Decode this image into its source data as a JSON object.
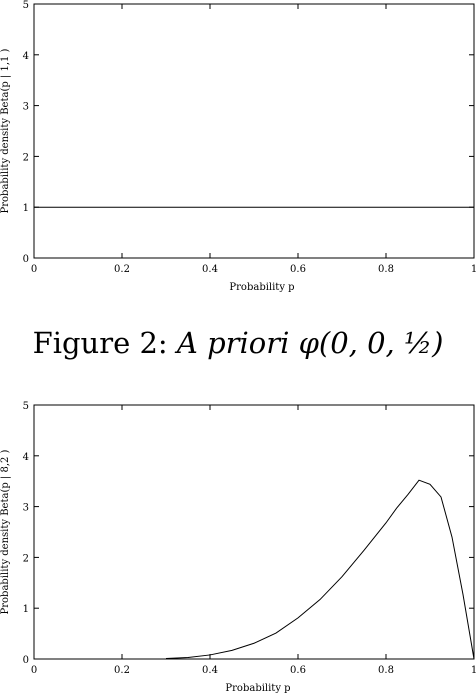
{
  "caption": {
    "prefix": "Figure 2: ",
    "italic": "A priori",
    "math": "φ(0, 0, ½)"
  },
  "chart_data": [
    {
      "type": "line",
      "xlabel": "Probability p",
      "ylabel": "Probability density  Beta(p | 1,1 )",
      "xlim": [
        0,
        1
      ],
      "ylim": [
        0,
        5
      ],
      "x_ticks": [
        "0",
        "0.2",
        "0.4",
        "0.6",
        "0.8",
        "1"
      ],
      "y_ticks": [
        "0",
        "1",
        "2",
        "3",
        "4",
        "5"
      ],
      "grid": false,
      "series": [
        {
          "x": [
            0,
            0.25,
            0.5,
            0.75,
            1
          ],
          "y": [
            1,
            1,
            1,
            1,
            1
          ]
        }
      ]
    },
    {
      "type": "line",
      "xlabel": "Probability  p",
      "ylabel": "Probability density  Beta(p | 8,2 )",
      "xlim": [
        0,
        1
      ],
      "ylim": [
        0,
        5
      ],
      "x_ticks": [
        "0",
        "0.2",
        "0.4",
        "0.6",
        "0.8",
        "1"
      ],
      "y_ticks": [
        "0",
        "1",
        "2",
        "3",
        "4",
        "5"
      ],
      "grid": false,
      "series": [
        {
          "x": [
            0.3,
            0.35,
            0.4,
            0.45,
            0.5,
            0.55,
            0.6,
            0.65,
            0.7,
            0.75,
            0.8,
            0.825,
            0.85,
            0.875,
            0.9,
            0.925,
            0.95,
            0.975,
            1.0
          ],
          "y": [
            0.01,
            0.03,
            0.08,
            0.17,
            0.31,
            0.51,
            0.81,
            1.17,
            1.62,
            2.14,
            2.68,
            2.98,
            3.24,
            3.52,
            3.44,
            3.19,
            2.4,
            1.27,
            0.0
          ]
        }
      ]
    }
  ]
}
